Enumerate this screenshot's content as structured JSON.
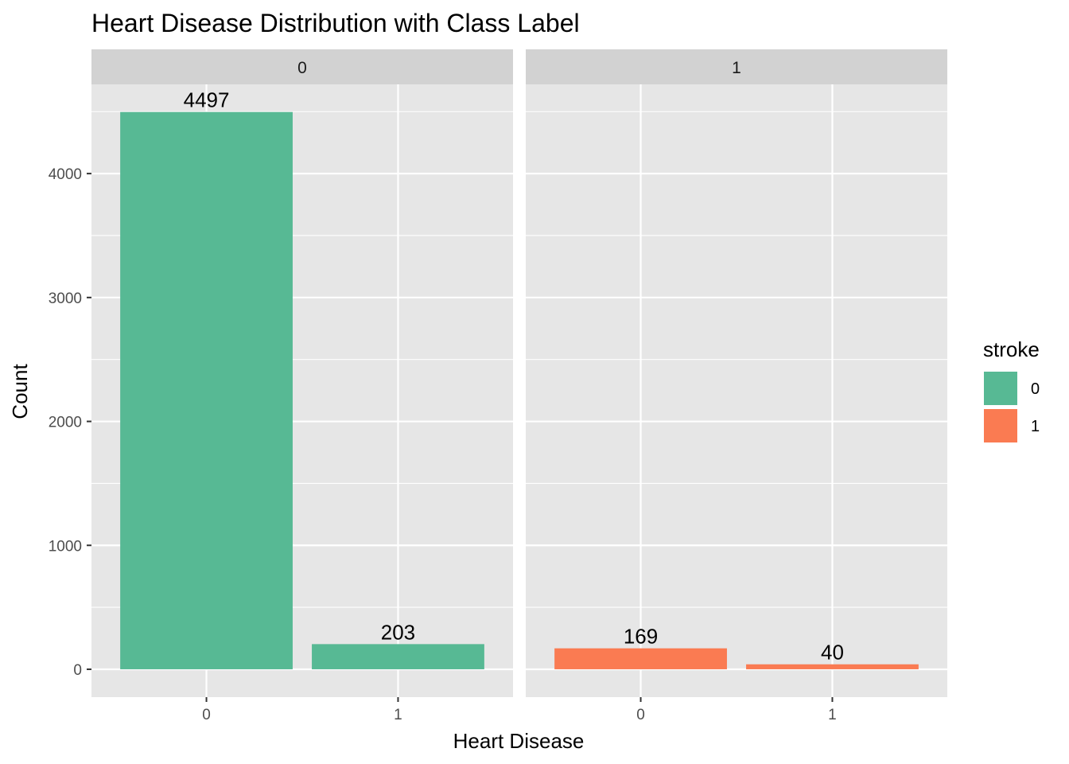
{
  "chart_data": {
    "type": "bar",
    "title": "Heart Disease Distribution with Class Label",
    "xlabel": "Heart Disease",
    "ylabel": "Count",
    "ylim": [
      -225,
      4720
    ],
    "y_ticks": [
      0,
      1000,
      2000,
      3000,
      4000
    ],
    "categories": [
      "0",
      "1"
    ],
    "facet_variable": "stroke",
    "facets": [
      {
        "label": "0",
        "fill_group": "0",
        "values": [
          4497,
          203
        ]
      },
      {
        "label": "1",
        "fill_group": "1",
        "values": [
          169,
          40
        ]
      }
    ],
    "grid": true,
    "legend": {
      "title": "stroke",
      "position": "right",
      "items": [
        {
          "label": "0",
          "color": "#57B994"
        },
        {
          "label": "1",
          "color": "#FA7B52"
        }
      ]
    },
    "colors": {
      "panel_background": "#E6E6E6",
      "strip_background": "#D2D2D2",
      "grid_line": "#FFFFFF"
    }
  }
}
